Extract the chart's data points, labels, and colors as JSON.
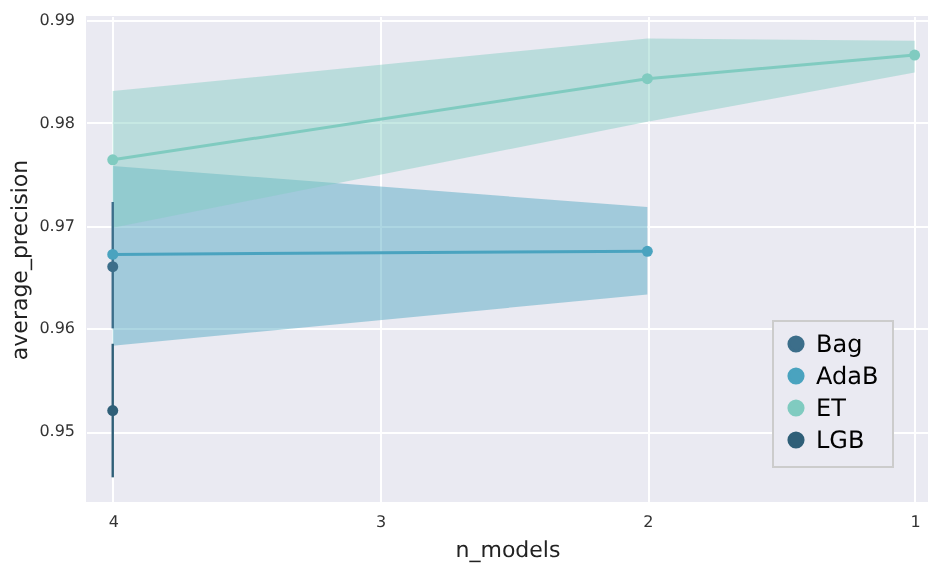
{
  "chart_data": {
    "type": "line",
    "xlabel": "n_models",
    "ylabel": "average_precision",
    "xlim": [
      4.1,
      0.95
    ],
    "xticks": [
      4,
      3,
      2,
      1
    ],
    "ylim": [
      0.9431,
      0.9904
    ],
    "yticks": [
      0.95,
      0.96,
      0.97,
      0.98,
      0.99
    ],
    "grid": true,
    "legend": "bottom right",
    "marker": "circle",
    "line_style": "solid",
    "series": [
      {
        "name": "Bag",
        "color": "#3c6e8a",
        "x": [
          4
        ],
        "values": [
          0.966
        ],
        "errors": [
          [
            0.96,
            0.9723
          ]
        ]
      },
      {
        "name": "AdaB",
        "color": "#4aa3bf",
        "x": [
          4,
          2
        ],
        "values": [
          0.9672,
          0.9675
        ],
        "lower": [
          0.9583,
          0.9633
        ],
        "upper": [
          0.9758,
          0.9718
        ]
      },
      {
        "name": "ET",
        "color": "#80cbc0",
        "x": [
          4,
          2,
          1
        ],
        "values": [
          0.9764,
          0.9843,
          0.9866
        ],
        "lower": [
          0.9698,
          0.9801,
          0.9849
        ],
        "upper": [
          0.9831,
          0.9882,
          0.988
        ]
      },
      {
        "name": "LGB",
        "color": "#2f5f78",
        "x": [
          4
        ],
        "values": [
          0.952
        ],
        "errors": [
          [
            0.9455,
            0.9585
          ]
        ]
      }
    ]
  }
}
